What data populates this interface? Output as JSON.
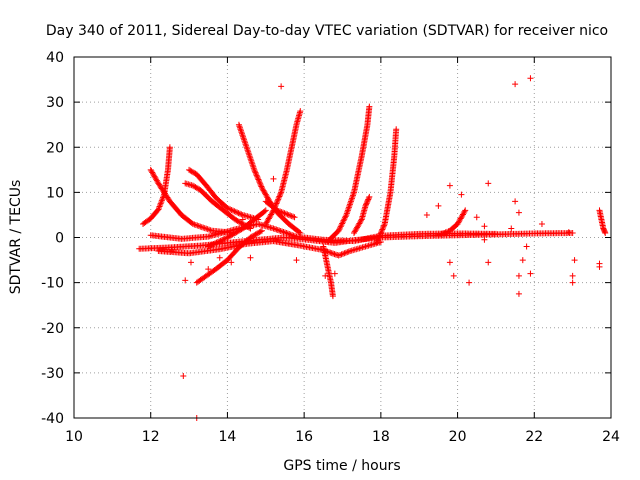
{
  "chart_data": {
    "type": "scatter",
    "title": "Day 340 of 2011, Sidereal Day-to-day VTEC variation (SDTVAR) for receiver nico",
    "xlabel": "GPS time / hours",
    "ylabel": "SDTVAR / TECUs",
    "xlim": [
      10,
      24
    ],
    "ylim": [
      -40,
      40
    ],
    "xticks": [
      10,
      12,
      14,
      16,
      18,
      20,
      22,
      24
    ],
    "yticks": [
      -40,
      -30,
      -20,
      -10,
      0,
      10,
      20,
      30,
      40
    ],
    "xtick_labels": [
      "10",
      "12",
      "14",
      "16",
      "18",
      "20",
      "22",
      "24"
    ],
    "ytick_labels": [
      "-40",
      "-30",
      "-20",
      "-10",
      "0",
      "10",
      "20",
      "30",
      "40"
    ],
    "grid": true,
    "marker": "+",
    "color": "#ff0000",
    "tracks": [
      {
        "name": "baseline-main",
        "points": [
          [
            11.7,
            -2.5
          ],
          [
            12.5,
            -2.2
          ],
          [
            13.3,
            -1.8
          ],
          [
            14.0,
            -1.2
          ],
          [
            14.8,
            -0.5
          ],
          [
            15.5,
            0.0
          ],
          [
            16.2,
            -0.6
          ],
          [
            16.8,
            -1.2
          ],
          [
            17.3,
            -0.6
          ],
          [
            18.0,
            0.0
          ],
          [
            19.0,
            0.3
          ],
          [
            20.0,
            0.5
          ],
          [
            21.0,
            0.7
          ],
          [
            22.0,
            0.9
          ],
          [
            23.0,
            1.0
          ]
        ]
      },
      {
        "name": "baseline-upper",
        "points": [
          [
            12.0,
            0.5
          ],
          [
            12.8,
            -0.3
          ],
          [
            13.5,
            0.2
          ],
          [
            14.2,
            1.8
          ],
          [
            14.8,
            3.0
          ],
          [
            15.2,
            2.0
          ],
          [
            15.8,
            0.2
          ],
          [
            16.5,
            -0.5
          ],
          [
            17.3,
            -0.8
          ],
          [
            18.0,
            0.4
          ],
          [
            19.0,
            0.8
          ],
          [
            20.0,
            0.9
          ],
          [
            21.0,
            0.8
          ]
        ]
      },
      {
        "name": "baseline-lower",
        "points": [
          [
            12.2,
            -3.0
          ],
          [
            13.0,
            -3.5
          ],
          [
            13.8,
            -2.6
          ],
          [
            14.5,
            -1.4
          ],
          [
            15.2,
            -0.8
          ],
          [
            15.9,
            -1.8
          ],
          [
            16.5,
            -2.8
          ],
          [
            16.9,
            -4.0
          ],
          [
            17.2,
            -3.0
          ],
          [
            18.0,
            -1.0
          ]
        ]
      },
      {
        "name": "arc-12-left",
        "points": [
          [
            11.8,
            3.0
          ],
          [
            12.0,
            4.2
          ],
          [
            12.2,
            6.2
          ],
          [
            12.35,
            9.5
          ],
          [
            12.45,
            15.0
          ],
          [
            12.5,
            20.0
          ]
        ]
      },
      {
        "name": "arc-12-mid",
        "points": [
          [
            12.0,
            15.0
          ],
          [
            12.2,
            12.0
          ],
          [
            12.5,
            8.0
          ],
          [
            12.8,
            5.0
          ],
          [
            13.1,
            3.0
          ],
          [
            13.6,
            1.5
          ],
          [
            14.2,
            1.0
          ]
        ]
      },
      {
        "name": "arc-13-left",
        "points": [
          [
            12.9,
            12.0
          ],
          [
            13.1,
            11.5
          ],
          [
            13.3,
            10.5
          ],
          [
            13.6,
            8.0
          ],
          [
            13.9,
            6.0
          ],
          [
            14.2,
            4.0
          ],
          [
            14.6,
            2.0
          ]
        ]
      },
      {
        "name": "arc-13-band",
        "points": [
          [
            13.0,
            15.0
          ],
          [
            13.2,
            14.0
          ],
          [
            13.45,
            11.5
          ],
          [
            13.7,
            8.8
          ],
          [
            14.0,
            6.5
          ],
          [
            14.4,
            5.0
          ],
          [
            14.8,
            4.0
          ]
        ]
      },
      {
        "name": "arc-13-low",
        "points": [
          [
            13.2,
            -10.0
          ],
          [
            13.4,
            -8.8
          ],
          [
            13.7,
            -7.0
          ],
          [
            14.0,
            -5.0
          ],
          [
            14.3,
            -2.2
          ],
          [
            14.6,
            0.0
          ],
          [
            14.9,
            1.5
          ]
        ]
      },
      {
        "name": "arc-14-rising",
        "points": [
          [
            13.5,
            -2.0
          ],
          [
            14.0,
            0.0
          ],
          [
            14.4,
            2.0
          ],
          [
            14.7,
            4.0
          ],
          [
            15.0,
            6.0
          ]
        ]
      },
      {
        "name": "arc-15-fall",
        "points": [
          [
            14.3,
            25.0
          ],
          [
            14.5,
            20.0
          ],
          [
            14.7,
            15.0
          ],
          [
            14.9,
            11.0
          ],
          [
            15.1,
            8.0
          ],
          [
            15.3,
            5.5
          ],
          [
            15.6,
            3.0
          ],
          [
            15.9,
            1.0
          ]
        ]
      },
      {
        "name": "arc-15-rise",
        "points": [
          [
            15.0,
            3.0
          ],
          [
            15.2,
            6.0
          ],
          [
            15.4,
            10.0
          ],
          [
            15.55,
            15.0
          ],
          [
            15.7,
            21.0
          ],
          [
            15.8,
            25.0
          ],
          [
            15.9,
            28.0
          ]
        ]
      },
      {
        "name": "arc-15-cluster",
        "points": [
          [
            15.0,
            8.0
          ],
          [
            15.15,
            7.0
          ],
          [
            15.3,
            6.0
          ],
          [
            15.45,
            5.5
          ],
          [
            15.6,
            5.0
          ],
          [
            15.75,
            4.5
          ]
        ]
      },
      {
        "name": "arc-16-dip",
        "points": [
          [
            16.5,
            -2.0
          ],
          [
            16.6,
            -6.0
          ],
          [
            16.7,
            -10.0
          ],
          [
            16.75,
            -13.0
          ]
        ]
      },
      {
        "name": "arc-17-rise",
        "points": [
          [
            16.6,
            -1.0
          ],
          [
            16.9,
            1.5
          ],
          [
            17.1,
            5.0
          ],
          [
            17.3,
            10.0
          ],
          [
            17.5,
            18.0
          ],
          [
            17.65,
            25.0
          ],
          [
            17.7,
            29.0
          ]
        ]
      },
      {
        "name": "arc-17-low",
        "points": [
          [
            17.3,
            1.0
          ],
          [
            17.5,
            4.0
          ],
          [
            17.6,
            7.0
          ],
          [
            17.7,
            9.0
          ]
        ]
      },
      {
        "name": "arc-18-rise",
        "points": [
          [
            17.9,
            -1.0
          ],
          [
            18.1,
            3.0
          ],
          [
            18.25,
            10.0
          ],
          [
            18.35,
            18.0
          ],
          [
            18.4,
            24.0
          ]
        ]
      },
      {
        "name": "arc-20-rise",
        "points": [
          [
            19.5,
            0.5
          ],
          [
            19.8,
            1.5
          ],
          [
            20.0,
            3.0
          ],
          [
            20.1,
            4.5
          ],
          [
            20.2,
            6.0
          ]
        ]
      },
      {
        "name": "arc-23-end",
        "points": [
          [
            23.7,
            6.0
          ],
          [
            23.75,
            4.0
          ],
          [
            23.8,
            2.0
          ],
          [
            23.85,
            1.0
          ]
        ]
      }
    ],
    "scatter_points": [
      [
        15.4,
        33.5
      ],
      [
        21.5,
        34.0
      ],
      [
        21.9,
        35.3
      ],
      [
        12.85,
        -30.7
      ],
      [
        13.2,
        -40.0
      ],
      [
        12.9,
        -9.5
      ],
      [
        13.5,
        -7.0
      ],
      [
        13.8,
        -4.5
      ],
      [
        14.6,
        -4.5
      ],
      [
        14.4,
        4.0
      ],
      [
        15.2,
        13.0
      ],
      [
        15.8,
        -5.0
      ],
      [
        16.55,
        -8.5
      ],
      [
        16.8,
        -8.0
      ],
      [
        19.2,
        5.0
      ],
      [
        19.5,
        7.0
      ],
      [
        19.8,
        11.5
      ],
      [
        19.8,
        -5.5
      ],
      [
        19.9,
        -8.5
      ],
      [
        20.1,
        9.5
      ],
      [
        20.3,
        -10.0
      ],
      [
        20.5,
        4.5
      ],
      [
        20.7,
        2.5
      ],
      [
        20.7,
        -0.5
      ],
      [
        20.8,
        -5.5
      ],
      [
        20.8,
        12.0
      ],
      [
        21.5,
        8.0
      ],
      [
        21.6,
        5.5
      ],
      [
        21.6,
        -8.5
      ],
      [
        21.6,
        -12.5
      ],
      [
        21.7,
        -5.0
      ],
      [
        21.8,
        -2.0
      ],
      [
        21.9,
        -8.0
      ],
      [
        22.2,
        3.0
      ],
      [
        21.4,
        2.0
      ],
      [
        22.9,
        1.2
      ],
      [
        23.0,
        -8.5
      ],
      [
        23.0,
        -10.0
      ],
      [
        23.05,
        -5.0
      ],
      [
        23.7,
        -5.8
      ],
      [
        23.7,
        -6.5
      ],
      [
        14.1,
        -5.5
      ],
      [
        13.05,
        -5.5
      ],
      [
        12.55,
        -3.0
      ]
    ]
  }
}
